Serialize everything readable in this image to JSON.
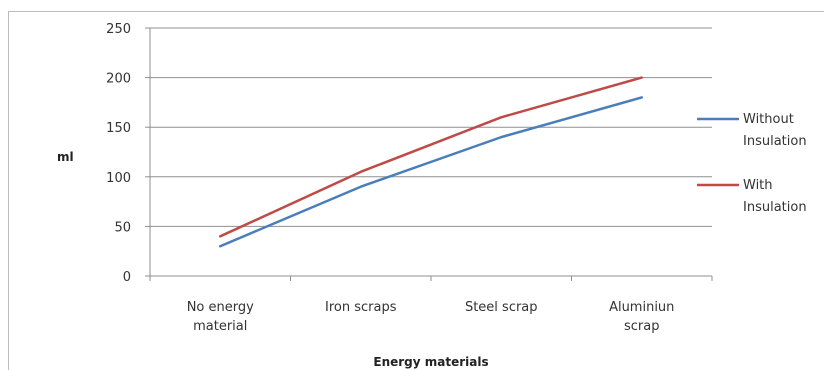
{
  "chart_data": {
    "type": "line",
    "title": "",
    "xlabel": "Energy materials",
    "ylabel": "ml",
    "categories": [
      [
        "No energy",
        "material"
      ],
      [
        "Iron scraps"
      ],
      [
        "Steel  scrap"
      ],
      [
        "Aluminiun",
        "scrap"
      ]
    ],
    "series": [
      {
        "name": [
          "Without",
          "Insulation"
        ],
        "color": "#4a7ebb",
        "values": [
          30,
          90,
          140,
          180
        ]
      },
      {
        "name": [
          "With",
          "Insulation"
        ],
        "color": "#be4b48",
        "values": [
          40,
          105,
          160,
          200
        ]
      }
    ],
    "ylim": [
      0,
      250
    ],
    "yticks": [
      0,
      50,
      100,
      150,
      200,
      250
    ],
    "grid": true,
    "legend_position": "right"
  }
}
